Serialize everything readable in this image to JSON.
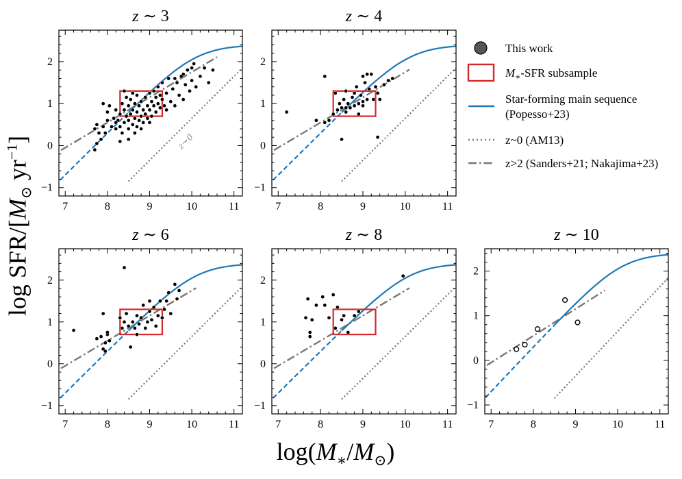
{
  "figure": {
    "ylabel_main": "log  SFR/[",
    "ylabel_m": "M",
    "ylabel_sun": "⊙",
    "ylabel_unit": " yr",
    "ylabel_exp": "−1",
    "ylabel_end": "]",
    "xlabel_pre": "log(",
    "xlabel_m": "M",
    "xlabel_star": "∗",
    "xlabel_mid": "/",
    "xlabel_m2": "M",
    "xlabel_sun": "⊙",
    "xlabel_end": ")"
  },
  "legend": {
    "this_work": "This work",
    "subsample_pre": "M",
    "subsample_star": "∗",
    "subsample_post": "-SFR subsample",
    "sfms_line1": "Star-forming main sequence",
    "sfms_line2": "(Popesso+23)",
    "z0": "z~0 (AM13)",
    "z2": "z>2 (Sanders+21; Nakajima+23)"
  },
  "colors": {
    "sfms": "#1f77b4",
    "box": "#d62728",
    "gray": "#777777",
    "points": "#000000"
  },
  "chart_data": [
    {
      "type": "scatter",
      "title": "z ∼ 3",
      "xlim": [
        6.85,
        11.2
      ],
      "ylim": [
        -1.2,
        2.75
      ],
      "xticks": [
        7,
        8,
        9,
        10,
        11
      ],
      "yticks": [
        -1,
        0,
        1,
        2
      ],
      "filled": true,
      "annotation": "z∼0",
      "z2_range": [
        6.9,
        10.6
      ],
      "points": [
        [
          7.7,
          -0.1
        ],
        [
          7.75,
          0.05
        ],
        [
          7.8,
          0.3
        ],
        [
          7.85,
          0.15
        ],
        [
          7.9,
          0.45
        ],
        [
          7.7,
          0.4
        ],
        [
          7.75,
          0.5
        ],
        [
          7.95,
          0.3
        ],
        [
          8.0,
          0.6
        ],
        [
          8.0,
          0.8
        ],
        [
          7.9,
          1.0
        ],
        [
          8.05,
          0.95
        ],
        [
          8.1,
          0.45
        ],
        [
          8.15,
          0.65
        ],
        [
          8.2,
          0.4
        ],
        [
          8.2,
          0.85
        ],
        [
          8.25,
          0.6
        ],
        [
          8.3,
          0.45
        ],
        [
          8.3,
          0.75
        ],
        [
          8.35,
          1.0
        ],
        [
          8.35,
          0.3
        ],
        [
          8.4,
          0.55
        ],
        [
          8.4,
          0.85
        ],
        [
          8.45,
          0.7
        ],
        [
          8.45,
          1.15
        ],
        [
          8.5,
          0.4
        ],
        [
          8.5,
          0.6
        ],
        [
          8.5,
          0.95
        ],
        [
          8.55,
          0.75
        ],
        [
          8.55,
          1.1
        ],
        [
          8.6,
          0.5
        ],
        [
          8.6,
          0.85
        ],
        [
          8.65,
          0.65
        ],
        [
          8.65,
          1.0
        ],
        [
          8.7,
          0.45
        ],
        [
          8.7,
          0.8
        ],
        [
          8.7,
          1.2
        ],
        [
          8.75,
          0.6
        ],
        [
          8.75,
          0.95
        ],
        [
          8.8,
          0.7
        ],
        [
          8.8,
          1.05
        ],
        [
          8.85,
          0.55
        ],
        [
          8.85,
          0.85
        ],
        [
          8.9,
          0.75
        ],
        [
          8.9,
          1.15
        ],
        [
          8.95,
          0.65
        ],
        [
          8.95,
          0.95
        ],
        [
          9.0,
          0.85
        ],
        [
          9.0,
          1.25
        ],
        [
          9.05,
          0.7
        ],
        [
          9.05,
          1.05
        ],
        [
          9.1,
          0.95
        ],
        [
          9.1,
          1.3
        ],
        [
          9.15,
          0.8
        ],
        [
          9.15,
          1.15
        ],
        [
          9.2,
          1.0
        ],
        [
          9.2,
          1.4
        ],
        [
          9.25,
          0.9
        ],
        [
          9.25,
          1.2
        ],
        [
          9.3,
          1.1
        ],
        [
          9.3,
          1.5
        ],
        [
          9.35,
          0.95
        ],
        [
          9.4,
          1.25
        ],
        [
          9.45,
          1.6
        ],
        [
          9.5,
          1.05
        ],
        [
          9.55,
          1.35
        ],
        [
          9.6,
          0.95
        ],
        [
          9.65,
          1.5
        ],
        [
          9.7,
          1.2
        ],
        [
          9.75,
          1.65
        ],
        [
          9.8,
          1.1
        ],
        [
          9.85,
          1.45
        ],
        [
          9.9,
          1.8
        ],
        [
          9.95,
          1.3
        ],
        [
          10.0,
          1.55
        ],
        [
          10.05,
          1.95
        ],
        [
          10.1,
          1.4
        ],
        [
          10.2,
          1.65
        ],
        [
          10.3,
          1.85
        ],
        [
          10.4,
          1.5
        ],
        [
          10.5,
          1.8
        ],
        [
          8.3,
          0.1
        ],
        [
          8.5,
          0.15
        ],
        [
          8.65,
          0.3
        ],
        [
          8.4,
          1.3
        ],
        [
          9.6,
          1.6
        ],
        [
          9.8,
          1.7
        ],
        [
          10.0,
          1.85
        ],
        [
          8.2,
          0.55
        ],
        [
          8.6,
          1.25
        ],
        [
          8.8,
          0.4
        ],
        [
          9.0,
          0.55
        ],
        [
          9.4,
          0.85
        ]
      ]
    },
    {
      "type": "scatter",
      "title": "z ∼ 4",
      "xlim": [
        6.85,
        11.2
      ],
      "ylim": [
        -1.2,
        2.75
      ],
      "xticks": [
        7,
        8,
        9,
        10,
        11
      ],
      "yticks": [
        -1,
        0,
        1,
        2
      ],
      "filled": true,
      "z2_range": [
        6.9,
        10.1
      ],
      "points": [
        [
          7.2,
          0.8
        ],
        [
          7.9,
          0.6
        ],
        [
          8.1,
          0.55
        ],
        [
          8.2,
          0.6
        ],
        [
          8.3,
          0.75
        ],
        [
          8.35,
          1.25
        ],
        [
          8.4,
          0.85
        ],
        [
          8.45,
          1.0
        ],
        [
          8.5,
          0.9
        ],
        [
          8.55,
          1.1
        ],
        [
          8.6,
          0.8
        ],
        [
          8.6,
          1.3
        ],
        [
          8.65,
          1.0
        ],
        [
          8.7,
          0.9
        ],
        [
          8.75,
          1.15
        ],
        [
          8.8,
          0.95
        ],
        [
          8.85,
          1.4
        ],
        [
          8.9,
          1.0
        ],
        [
          8.95,
          1.2
        ],
        [
          9.0,
          0.95
        ],
        [
          9.05,
          1.5
        ],
        [
          9.1,
          1.7
        ],
        [
          9.1,
          1.1
        ],
        [
          9.15,
          1.35
        ],
        [
          9.2,
          1.7
        ],
        [
          9.25,
          1.1
        ],
        [
          9.3,
          1.4
        ],
        [
          9.35,
          1.25
        ],
        [
          9.4,
          1.1
        ],
        [
          9.5,
          1.45
        ],
        [
          9.6,
          1.55
        ],
        [
          9.7,
          1.6
        ],
        [
          8.1,
          1.65
        ],
        [
          8.5,
          0.15
        ],
        [
          9.0,
          1.65
        ],
        [
          9.35,
          0.2
        ],
        [
          8.8,
          1.25
        ],
        [
          8.9,
          0.75
        ],
        [
          8.6,
          0.9
        ],
        [
          9.0,
          1.05
        ]
      ]
    },
    {
      "type": "scatter",
      "title": "z ∼ 6",
      "xlim": [
        6.85,
        11.2
      ],
      "ylim": [
        -1.2,
        2.75
      ],
      "xticks": [
        7,
        8,
        9,
        10,
        11
      ],
      "yticks": [
        -1,
        0,
        1,
        2
      ],
      "filled": true,
      "z2_range": [
        6.9,
        10.1
      ],
      "points": [
        [
          7.2,
          0.8
        ],
        [
          7.75,
          0.6
        ],
        [
          7.85,
          0.65
        ],
        [
          7.9,
          0.35
        ],
        [
          7.95,
          0.5
        ],
        [
          8.0,
          0.7
        ],
        [
          8.05,
          0.55
        ],
        [
          8.0,
          0.75
        ],
        [
          7.9,
          1.2
        ],
        [
          8.3,
          1.1
        ],
        [
          8.35,
          0.85
        ],
        [
          8.4,
          1.0
        ],
        [
          8.45,
          1.2
        ],
        [
          8.5,
          0.9
        ],
        [
          8.55,
          0.4
        ],
        [
          8.6,
          1.0
        ],
        [
          8.65,
          0.85
        ],
        [
          8.7,
          1.15
        ],
        [
          8.75,
          0.95
        ],
        [
          8.8,
          1.1
        ],
        [
          8.85,
          1.4
        ],
        [
          8.9,
          0.85
        ],
        [
          8.95,
          1.0
        ],
        [
          9.0,
          1.25
        ],
        [
          9.05,
          1.05
        ],
        [
          9.1,
          1.35
        ],
        [
          9.15,
          0.9
        ],
        [
          9.2,
          1.15
        ],
        [
          9.25,
          1.5
        ],
        [
          9.3,
          1.1
        ],
        [
          9.35,
          1.3
        ],
        [
          9.4,
          1.5
        ],
        [
          9.45,
          1.7
        ],
        [
          9.5,
          1.2
        ],
        [
          9.6,
          1.9
        ],
        [
          9.65,
          1.55
        ],
        [
          9.7,
          1.75
        ],
        [
          8.4,
          2.3
        ],
        [
          7.95,
          0.3
        ],
        [
          8.7,
          0.7
        ],
        [
          9.0,
          1.5
        ]
      ]
    },
    {
      "type": "scatter",
      "title": "z ∼ 8",
      "xlim": [
        6.85,
        11.2
      ],
      "ylim": [
        -1.2,
        2.75
      ],
      "xticks": [
        7,
        8,
        9,
        10,
        11
      ],
      "yticks": [
        -1,
        0,
        1,
        2
      ],
      "filled": true,
      "z2_range": [
        6.9,
        10.1
      ],
      "points": [
        [
          7.65,
          1.1
        ],
        [
          7.7,
          1.55
        ],
        [
          7.75,
          0.75
        ],
        [
          7.75,
          0.65
        ],
        [
          7.8,
          1.05
        ],
        [
          7.9,
          1.4
        ],
        [
          8.05,
          1.6
        ],
        [
          8.1,
          1.4
        ],
        [
          8.2,
          1.1
        ],
        [
          8.35,
          0.85
        ],
        [
          8.5,
          1.05
        ],
        [
          8.55,
          1.15
        ],
        [
          8.65,
          0.75
        ],
        [
          8.8,
          1.15
        ],
        [
          8.9,
          1.25
        ],
        [
          9.95,
          2.1
        ],
        [
          8.3,
          1.65
        ],
        [
          8.4,
          1.35
        ]
      ]
    },
    {
      "type": "scatter",
      "title": "z ∼ 10",
      "xlim": [
        6.85,
        11.2
      ],
      "ylim": [
        -1.2,
        2.5
      ],
      "xticks": [
        7,
        8,
        9,
        10,
        11
      ],
      "yticks": [
        -1,
        0,
        1,
        2
      ],
      "filled": false,
      "z2_range": [
        6.9,
        9.7
      ],
      "points": [
        [
          7.6,
          0.25
        ],
        [
          7.8,
          0.35
        ],
        [
          8.1,
          0.7
        ],
        [
          8.75,
          1.35
        ],
        [
          9.05,
          0.85
        ]
      ]
    }
  ],
  "model": {
    "sfms_solid_from": 8.5,
    "subsample_box": {
      "x": [
        8.3,
        9.3
      ],
      "y": [
        0.7,
        1.3
      ]
    },
    "z0_range": [
      8.5,
      11.2
    ],
    "legend_items": [
      "this_work",
      "subsample",
      "sfms",
      "z0",
      "z2"
    ]
  }
}
